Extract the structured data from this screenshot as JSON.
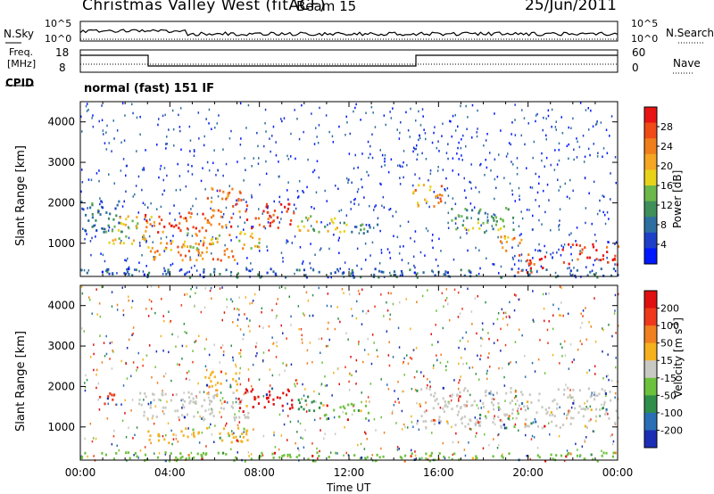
{
  "header": {
    "station": "Christmas Valley West (fitACF)",
    "beam": "Beam 15",
    "date": "25/Jun/2011"
  },
  "panels": {
    "nsky_label": "N.Sky",
    "nsky_ticks": [
      "10^5",
      "10^0"
    ],
    "nsearch_label": "N.Search",
    "nsearch_ticks": [
      "10^5",
      "10^0"
    ],
    "freq_label": "Freq.",
    "freq_unit": "[MHz]",
    "freq_ticks": [
      "18",
      "8"
    ],
    "nave_label": "Nave",
    "nave_ticks": [
      "60",
      "0"
    ],
    "cpid_label": "CPID",
    "cpid_value": "normal (fast) 151 IF"
  },
  "chart_data": [
    {
      "type": "heatmap",
      "title": "",
      "xlabel": "Time UT",
      "ylabel": "Slant Range [km]",
      "x_ticks": [
        "00:00",
        "04:00",
        "08:00",
        "12:00",
        "16:00",
        "20:00",
        "00:00"
      ],
      "xlim_hours": [
        0,
        24
      ],
      "y_ticks": [
        1000,
        2000,
        3000,
        4000
      ],
      "ylim_km": [
        180,
        4500
      ],
      "colorbar": {
        "label": "Power [dB]",
        "ticks": [
          "28",
          "24",
          "20",
          "16",
          "12",
          "8",
          "4"
        ],
        "colors": [
          "#0018ff",
          "#1e3fc8",
          "#2d6fa0",
          "#3f8f5a",
          "#6db84a",
          "#e8d21a",
          "#f5a623",
          "#f07e1b",
          "#f04a17",
          "#e81414"
        ]
      },
      "regions": [
        {
          "t0": 0.0,
          "t1": 1.8,
          "r0": 1300,
          "r1": 2100,
          "level": 0.25
        },
        {
          "t0": 1.2,
          "t1": 3.2,
          "r0": 1000,
          "r1": 1700,
          "level": 0.55
        },
        {
          "t0": 2.8,
          "t1": 6.8,
          "r0": 1300,
          "r1": 1800,
          "level": 0.85
        },
        {
          "t0": 3.0,
          "t1": 7.0,
          "r0": 600,
          "r1": 1100,
          "level": 0.75
        },
        {
          "t0": 4.5,
          "t1": 8.0,
          "r0": 900,
          "r1": 1300,
          "level": 0.6
        },
        {
          "t0": 5.5,
          "t1": 7.3,
          "r0": 1800,
          "r1": 2400,
          "level": 0.8
        },
        {
          "t0": 7.3,
          "t1": 9.5,
          "r0": 1400,
          "r1": 2000,
          "level": 0.9
        },
        {
          "t0": 9.5,
          "t1": 12.0,
          "r0": 1300,
          "r1": 1700,
          "level": 0.5
        },
        {
          "t0": 12.0,
          "t1": 13.5,
          "r0": 1200,
          "r1": 1500,
          "level": 0.3
        },
        {
          "t0": 14.8,
          "t1": 16.2,
          "r0": 1900,
          "r1": 2500,
          "level": 0.7
        },
        {
          "t0": 16.5,
          "t1": 19.5,
          "r0": 1300,
          "r1": 1900,
          "level": 0.4
        },
        {
          "t0": 18.5,
          "t1": 19.8,
          "r0": 800,
          "r1": 1200,
          "level": 0.7
        },
        {
          "t0": 19.5,
          "t1": 21.0,
          "r0": 300,
          "r1": 800,
          "level": 0.95
        },
        {
          "t0": 21.5,
          "t1": 24.0,
          "r0": 500,
          "r1": 1000,
          "level": 0.9
        },
        {
          "t0": 0.0,
          "t1": 24.0,
          "r0": 180,
          "r1": 400,
          "level": 0.2
        }
      ]
    },
    {
      "type": "heatmap",
      "title": "",
      "xlabel": "Time UT",
      "ylabel": "Slant Range [km]",
      "x_ticks": [
        "00:00",
        "04:00",
        "08:00",
        "12:00",
        "16:00",
        "20:00",
        "00:00"
      ],
      "xlim_hours": [
        0,
        24
      ],
      "y_ticks": [
        1000,
        2000,
        3000,
        4000
      ],
      "ylim_km": [
        180,
        4500
      ],
      "colorbar": {
        "label": "Velocity [m s-1]",
        "ticks": [
          "200",
          "100",
          "50",
          "15",
          "-15",
          "-50",
          "-100",
          "-200"
        ],
        "colors": [
          "#1c2fb4",
          "#2a6fb5",
          "#2f8f4a",
          "#6cc23c",
          "#c9c9c3",
          "#f5b21e",
          "#f08020",
          "#ee3a1a",
          "#e01010"
        ]
      },
      "regions": [
        {
          "t0": 0.8,
          "t1": 1.6,
          "r0": 1600,
          "r1": 2000,
          "level": 7
        },
        {
          "t0": 2.5,
          "t1": 7.5,
          "r0": 1200,
          "r1": 1900,
          "level": 4
        },
        {
          "t0": 3.0,
          "t1": 7.5,
          "r0": 600,
          "r1": 1000,
          "level": 5
        },
        {
          "t0": 5.5,
          "t1": 7.0,
          "r0": 1800,
          "r1": 2400,
          "level": 5
        },
        {
          "t0": 7.0,
          "t1": 9.5,
          "r0": 1400,
          "r1": 2000,
          "level": 8
        },
        {
          "t0": 9.5,
          "t1": 10.8,
          "r0": 1400,
          "r1": 1800,
          "level": 2
        },
        {
          "t0": 10.8,
          "t1": 13.0,
          "r0": 1200,
          "r1": 1600,
          "level": 3
        },
        {
          "t0": 15.0,
          "t1": 24.0,
          "r0": 1000,
          "r1": 2000,
          "level": 4
        },
        {
          "t0": 0.0,
          "t1": 24.0,
          "r0": 180,
          "r1": 400,
          "level": 3
        }
      ]
    }
  ]
}
